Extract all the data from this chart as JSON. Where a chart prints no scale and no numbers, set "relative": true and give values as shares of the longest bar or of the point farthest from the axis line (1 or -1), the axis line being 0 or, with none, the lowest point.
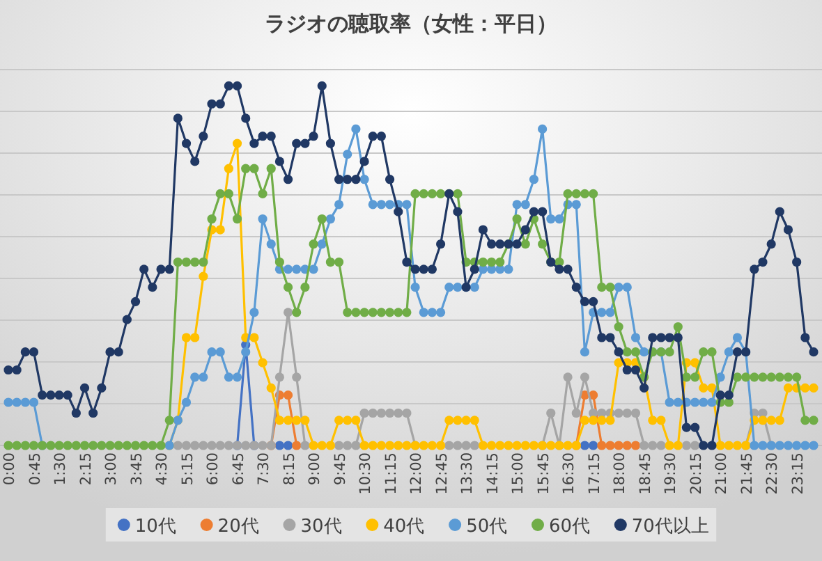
{
  "chart_data": {
    "type": "line",
    "title": "ラジオの聴取率（女性：平日）",
    "relative": true,
    "grid": "y",
    "legend": "bottom",
    "marker": "circle",
    "categories": [
      "0:00",
      null,
      null,
      "0:45",
      null,
      null,
      "1:30",
      null,
      null,
      "2:15",
      null,
      null,
      "3:00",
      null,
      null,
      "3:45",
      null,
      null,
      "4:30",
      null,
      null,
      "5:15",
      null,
      null,
      "6:00",
      null,
      null,
      "6:45",
      null,
      null,
      "7:30",
      null,
      null,
      "8:15",
      null,
      null,
      "9:00",
      null,
      null,
      "9:45",
      null,
      null,
      "10:30",
      null,
      null,
      "11:15",
      null,
      null,
      "12:00",
      null,
      null,
      "12:45",
      null,
      null,
      "13:30",
      null,
      null,
      "14:15",
      null,
      null,
      "15:00",
      null,
      null,
      "15:45",
      null,
      null,
      "16:30",
      null,
      null,
      "17:15",
      null,
      null,
      "18:00",
      null,
      null,
      "18:45",
      null,
      null,
      "19:30",
      null,
      null,
      "20:15",
      null,
      null,
      "21:00",
      null,
      null,
      "21:45",
      null,
      null,
      "22:30",
      null,
      null,
      "23:15",
      null,
      null
    ],
    "series": [
      {
        "name": "10代",
        "color": "#4472c4",
        "values": [
          null,
          null,
          null,
          null,
          null,
          null,
          null,
          null,
          null,
          null,
          null,
          null,
          null,
          null,
          null,
          null,
          null,
          null,
          null,
          null,
          null,
          null,
          null,
          null,
          null,
          null,
          null,
          0,
          0.28,
          0,
          null,
          null,
          0,
          0,
          null,
          null,
          null,
          null,
          null,
          null,
          null,
          null,
          null,
          null,
          null,
          null,
          null,
          null,
          null,
          null,
          null,
          null,
          null,
          null,
          null,
          null,
          null,
          null,
          null,
          null,
          null,
          null,
          null,
          null,
          null,
          null,
          null,
          null,
          0,
          0,
          null,
          null,
          null,
          null,
          null,
          null,
          null,
          null,
          null,
          null,
          null,
          null,
          null,
          null,
          null,
          null,
          null,
          null,
          null,
          null,
          null,
          null,
          null,
          null,
          null,
          null
        ]
      },
      {
        "name": "20代",
        "color": "#ed7d31",
        "values": [
          null,
          null,
          null,
          null,
          null,
          null,
          null,
          null,
          null,
          null,
          null,
          null,
          null,
          null,
          null,
          null,
          null,
          null,
          null,
          null,
          null,
          null,
          null,
          null,
          null,
          null,
          null,
          null,
          null,
          null,
          null,
          0,
          0.14,
          0.14,
          0,
          null,
          null,
          null,
          null,
          null,
          null,
          null,
          null,
          null,
          null,
          null,
          null,
          null,
          null,
          null,
          null,
          null,
          null,
          null,
          null,
          null,
          null,
          null,
          null,
          null,
          null,
          null,
          null,
          null,
          null,
          null,
          null,
          0,
          0.14,
          0.14,
          0,
          0,
          0,
          0,
          0,
          null,
          null,
          null,
          null,
          null,
          null,
          null,
          null,
          null,
          null,
          null,
          null,
          null,
          null,
          null,
          null,
          null,
          null,
          null,
          null,
          null
        ]
      },
      {
        "name": "30代",
        "color": "#a5a5a5",
        "values": [
          null,
          null,
          null,
          null,
          null,
          null,
          null,
          null,
          null,
          null,
          null,
          null,
          null,
          null,
          null,
          null,
          null,
          null,
          null,
          null,
          0,
          0,
          0,
          0,
          0,
          0,
          0,
          0,
          0,
          0,
          0,
          0,
          0.19,
          0.37,
          0.19,
          0,
          null,
          null,
          null,
          0,
          0,
          0,
          0.09,
          0.09,
          0.09,
          0.09,
          0.09,
          0.09,
          0,
          null,
          null,
          null,
          0,
          0,
          0,
          0,
          null,
          null,
          null,
          null,
          null,
          null,
          null,
          0,
          0.09,
          0,
          0.19,
          0.09,
          0.19,
          0.09,
          0.09,
          0.09,
          0.09,
          0.09,
          0.09,
          0,
          0,
          0,
          null,
          null,
          0,
          0,
          null,
          null,
          null,
          null,
          null,
          0,
          0.09,
          0.09,
          0,
          null,
          null,
          null,
          null,
          null
        ]
      },
      {
        "name": "40代",
        "color": "#ffc000",
        "values": [
          null,
          null,
          null,
          null,
          null,
          null,
          null,
          null,
          null,
          null,
          null,
          null,
          null,
          null,
          null,
          null,
          null,
          null,
          null,
          0,
          0.07,
          0.3,
          0.3,
          0.47,
          0.6,
          0.6,
          0.77,
          0.84,
          0.3,
          0.3,
          0.23,
          0.16,
          0.07,
          0.07,
          0.07,
          0.07,
          0,
          0,
          0,
          0.07,
          0.07,
          0.07,
          0,
          0,
          0,
          0,
          0,
          0,
          0,
          0,
          0,
          0,
          0.07,
          0.07,
          0.07,
          0.07,
          0,
          0,
          0,
          0,
          0,
          0,
          0,
          0,
          0,
          0,
          0,
          0,
          0.07,
          0.07,
          0.07,
          0.07,
          0.23,
          0.23,
          0.23,
          0.19,
          0.07,
          0.07,
          0,
          0,
          0.23,
          0.23,
          0.16,
          0.16,
          0,
          0,
          0,
          0,
          0.07,
          0.07,
          0.07,
          0.07,
          0.16,
          0.16,
          0.16,
          0.16
        ]
      },
      {
        "name": "50代",
        "color": "#5b9bd5",
        "values": [
          0.12,
          0.12,
          0.12,
          0.12,
          0,
          null,
          null,
          null,
          null,
          null,
          null,
          null,
          null,
          null,
          null,
          null,
          null,
          null,
          null,
          0,
          0.07,
          0.12,
          0.19,
          0.19,
          0.26,
          0.26,
          0.19,
          0.19,
          0.26,
          0.37,
          0.63,
          0.56,
          0.49,
          0.49,
          0.49,
          0.49,
          0.49,
          0.56,
          0.63,
          0.67,
          0.81,
          0.88,
          0.74,
          0.67,
          0.67,
          0.67,
          0.67,
          0.67,
          0.44,
          0.37,
          0.37,
          0.37,
          0.44,
          0.44,
          0.44,
          0.44,
          0.49,
          0.49,
          0.49,
          0.49,
          0.67,
          0.67,
          0.74,
          0.88,
          0.63,
          0.63,
          0.67,
          0.67,
          0.26,
          0.37,
          0.37,
          0.37,
          0.44,
          0.44,
          0.3,
          0.26,
          0.26,
          0.26,
          0.12,
          0.12,
          0.12,
          0.12,
          0.12,
          0.12,
          0.19,
          0.26,
          0.3,
          0.26,
          0,
          0,
          0,
          0,
          0,
          0,
          0,
          0
        ]
      },
      {
        "name": "60代",
        "color": "#70ad47",
        "values": [
          0,
          0,
          0,
          0,
          0,
          0,
          0,
          0,
          0,
          0,
          0,
          0,
          0,
          0,
          0,
          0,
          0,
          0,
          0,
          0.07,
          0.51,
          0.51,
          0.51,
          0.51,
          0.63,
          0.7,
          0.7,
          0.63,
          0.77,
          0.77,
          0.7,
          0.77,
          0.51,
          0.44,
          0.37,
          0.44,
          0.56,
          0.63,
          0.51,
          0.51,
          0.37,
          0.37,
          0.37,
          0.37,
          0.37,
          0.37,
          0.37,
          0.37,
          0.7,
          0.7,
          0.7,
          0.7,
          0.7,
          0.7,
          0.51,
          0.51,
          0.51,
          0.51,
          0.51,
          0.56,
          0.63,
          0.56,
          0.63,
          0.56,
          0.51,
          0.51,
          0.7,
          0.7,
          0.7,
          0.7,
          0.44,
          0.44,
          0.33,
          0.26,
          0.26,
          0.19,
          0.26,
          0.26,
          0.26,
          0.33,
          0.19,
          0.19,
          0.26,
          0.26,
          0.12,
          0.12,
          0.19,
          0.19,
          0.19,
          0.19,
          0.19,
          0.19,
          0.19,
          0.19,
          0.07,
          0.07
        ]
      },
      {
        "name": "70代以上",
        "color": "#203864",
        "values": [
          0.21,
          0.21,
          0.26,
          0.26,
          0.14,
          0.14,
          0.14,
          0.14,
          0.09,
          0.16,
          0.09,
          0.16,
          0.26,
          0.26,
          0.35,
          0.4,
          0.49,
          0.44,
          0.49,
          0.49,
          0.91,
          0.84,
          0.79,
          0.86,
          0.95,
          0.95,
          1,
          1,
          0.91,
          0.84,
          0.86,
          0.86,
          0.79,
          0.74,
          0.84,
          0.84,
          0.86,
          1,
          0.84,
          0.74,
          0.74,
          0.74,
          0.79,
          0.86,
          0.86,
          0.74,
          0.65,
          0.51,
          0.49,
          0.49,
          0.49,
          0.56,
          0.7,
          0.65,
          0.44,
          0.49,
          0.6,
          0.56,
          0.56,
          0.56,
          0.56,
          0.6,
          0.65,
          0.65,
          0.51,
          0.49,
          0.49,
          0.44,
          0.4,
          0.4,
          0.3,
          0.3,
          0.26,
          0.21,
          0.21,
          0.16,
          0.3,
          0.3,
          0.3,
          0.3,
          0.05,
          0.05,
          0,
          0,
          0.14,
          0.14,
          0.26,
          0.26,
          0.49,
          0.51,
          0.56,
          0.65,
          0.6,
          0.51,
          0.3,
          0.26
        ]
      }
    ]
  }
}
